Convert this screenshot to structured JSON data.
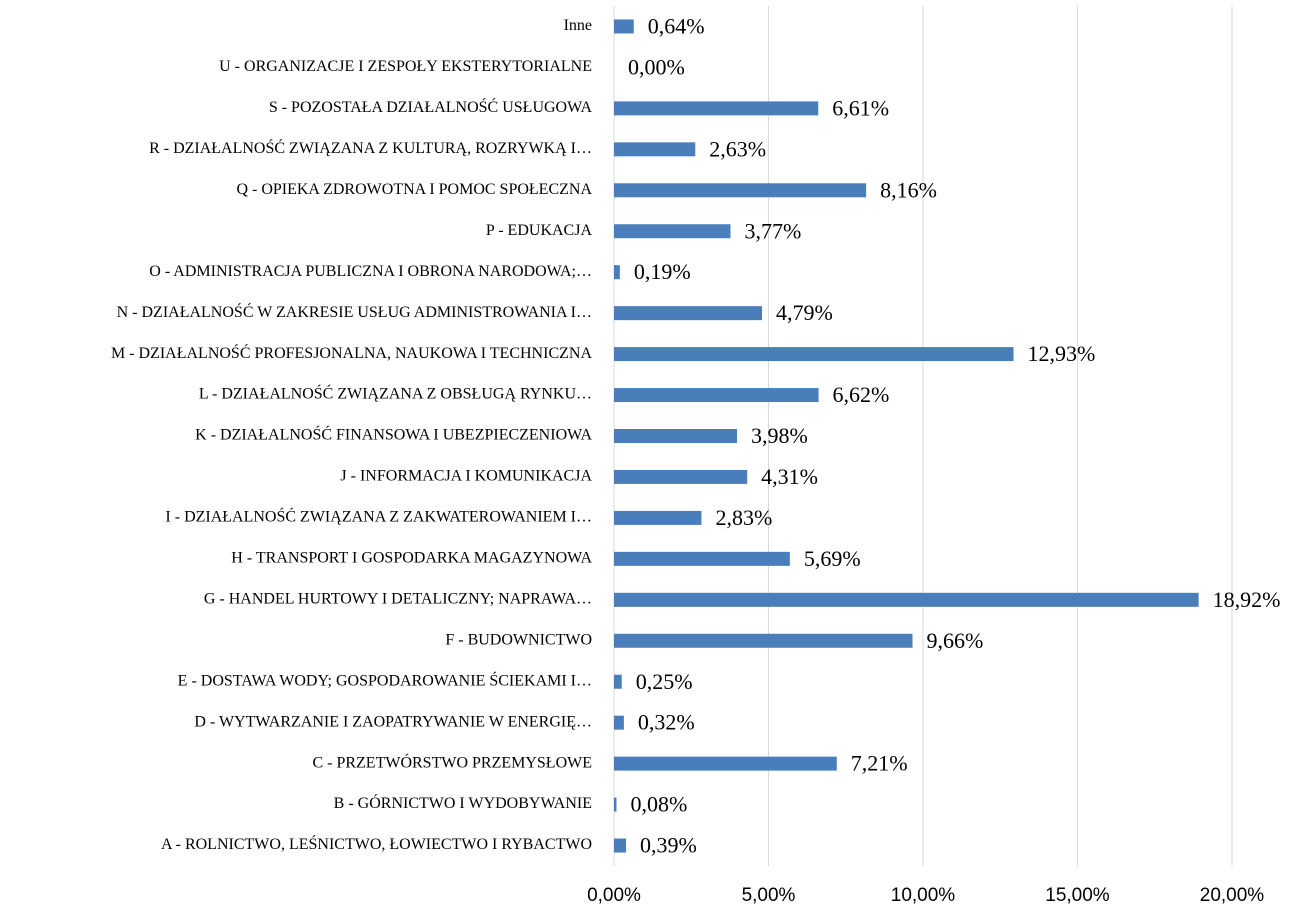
{
  "chart_data": {
    "type": "bar",
    "orientation": "horizontal",
    "color": "#4a7ebb",
    "grid": true,
    "categories": [
      "Inne",
      "U - ORGANIZACJE I ZESPOŁY EKSTERYTORIALNE",
      "S - POZOSTAŁA DZIAŁALNOŚĆ USŁUGOWA",
      "R - DZIAŁALNOŚĆ ZWIĄZANA Z KULTURĄ, ROZRYWKĄ I…",
      "Q - OPIEKA ZDROWOTNA I POMOC SPOŁECZNA",
      "P - EDUKACJA",
      "O - ADMINISTRACJA PUBLICZNA I OBRONA NARODOWA;…",
      "N - DZIAŁALNOŚĆ W ZAKRESIE USŁUG ADMINISTROWANIA I…",
      "M - DZIAŁALNOŚĆ PROFESJONALNA, NAUKOWA I TECHNICZNA",
      "L - DZIAŁALNOŚĆ ZWIĄZANA Z OBSŁUGĄ RYNKU…",
      "K - DZIAŁALNOŚĆ FINANSOWA I UBEZPIECZENIOWA",
      "J - INFORMACJA I KOMUNIKACJA",
      "I - DZIAŁALNOŚĆ ZWIĄZANA Z ZAKWATEROWANIEM I…",
      "H - TRANSPORT I GOSPODARKA MAGAZYNOWA",
      "G - HANDEL HURTOWY I DETALICZNY; NAPRAWA…",
      "F - BUDOWNICTWO",
      "E - DOSTAWA WODY; GOSPODAROWANIE ŚCIEKAMI I…",
      "D - WYTWARZANIE I ZAOPATRYWANIE W ENERGIĘ…",
      "C - PRZETWÓRSTWO PRZEMYSŁOWE",
      "B - GÓRNICTWO I WYDOBYWANIE",
      "A - ROLNICTWO, LEŚNICTWO, ŁOWIECTWO I RYBACTWO"
    ],
    "values": [
      0.64,
      0,
      6.61,
      2.63,
      8.16,
      3.77,
      0.19,
      4.79,
      12.93,
      6.62,
      3.98,
      4.31,
      2.83,
      5.69,
      18.92,
      9.66,
      0.25,
      0.32,
      7.21,
      0.08,
      0.39
    ],
    "value_labels": [
      "0,64%",
      "0,00%",
      "6,61%",
      "2,63%",
      "8,16%",
      "3,77%",
      "0,19%",
      "4,79%",
      "12,93%",
      "6,62%",
      "3,98%",
      "4,31%",
      "2,83%",
      "5,69%",
      "18,92%",
      "9,66%",
      "0,25%",
      "0,32%",
      "7,21%",
      "0,08%",
      "0,39%"
    ],
    "xlim": [
      0,
      20
    ],
    "xticks": [
      {
        "value": 0,
        "label": "0,00%"
      },
      {
        "value": 5,
        "label": "5,00%"
      },
      {
        "value": 10,
        "label": "10,00%"
      },
      {
        "value": 15,
        "label": "15,00%"
      },
      {
        "value": 20,
        "label": "20,00%"
      }
    ]
  }
}
